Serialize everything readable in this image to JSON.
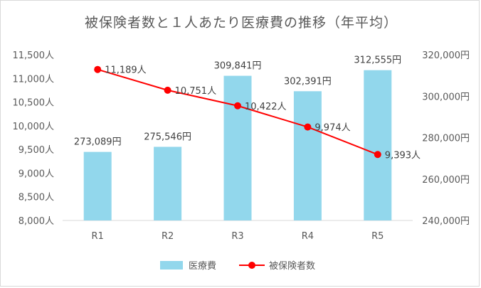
{
  "chart_data": {
    "type": "bar",
    "title": "被保険者数と１人あたり医療費の推移（年平均）",
    "categories": [
      "R1",
      "R2",
      "R3",
      "R4",
      "R5"
    ],
    "series": [
      {
        "name": "医療費",
        "type": "bar",
        "axis": "right",
        "color": "#92d7ec",
        "values": [
          273089,
          275546,
          309841,
          302391,
          312555
        ],
        "labels": [
          "273,089円",
          "275,546円",
          "309,841円",
          "302,391円",
          "312,555円"
        ]
      },
      {
        "name": "被保険者数",
        "type": "line",
        "axis": "left",
        "color": "#ff0000",
        "values": [
          11189,
          10751,
          10422,
          9974,
          9393
        ],
        "labels": [
          "11,189人",
          "10,751人",
          "10,422人",
          "9,974人",
          "9,393人"
        ]
      }
    ],
    "y_left": {
      "range": [
        8000,
        11500
      ],
      "ticks": [
        8000,
        8500,
        9000,
        9500,
        10000,
        10500,
        11000,
        11500
      ],
      "tick_labels": [
        "8,000人",
        "8,500人",
        "9,000人",
        "9,500人",
        "10,000人",
        "10,500人",
        "11,000人",
        "11,500人"
      ]
    },
    "y_right": {
      "range": [
        240000,
        320000
      ],
      "ticks": [
        240000,
        260000,
        280000,
        300000,
        320000
      ],
      "tick_labels": [
        "240,000円",
        "260,000円",
        "280,000円",
        "300,000円",
        "320,000円"
      ]
    },
    "grid": false,
    "legend_position": "bottom"
  }
}
